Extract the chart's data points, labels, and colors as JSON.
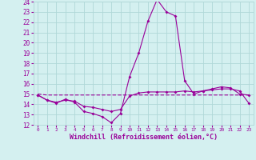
{
  "x": [
    0,
    1,
    2,
    3,
    4,
    5,
    6,
    7,
    8,
    9,
    10,
    11,
    12,
    13,
    14,
    15,
    16,
    17,
    18,
    19,
    20,
    21,
    22,
    23
  ],
  "line1": [
    14.9,
    14.4,
    14.1,
    14.5,
    14.2,
    13.3,
    13.1,
    12.8,
    12.2,
    13.1,
    16.7,
    19.0,
    22.1,
    24.2,
    23.0,
    22.6,
    16.3,
    15.0,
    15.3,
    15.5,
    15.7,
    15.6,
    15.0,
    14.9
  ],
  "line2": [
    15.0,
    14.9,
    14.9,
    14.9,
    14.9,
    14.9,
    14.9,
    14.9,
    14.9,
    14.9,
    14.9,
    14.9,
    14.9,
    14.9,
    14.9,
    14.9,
    14.9,
    14.9,
    14.9,
    14.9,
    14.9,
    14.9,
    14.9,
    14.9
  ],
  "line3": [
    14.9,
    14.4,
    14.2,
    14.4,
    14.3,
    13.8,
    13.7,
    13.5,
    13.3,
    13.5,
    14.8,
    15.1,
    15.2,
    15.2,
    15.2,
    15.2,
    15.3,
    15.2,
    15.3,
    15.4,
    15.5,
    15.5,
    15.3,
    14.1
  ],
  "line_color": "#990099",
  "bg_color": "#d4f0f0",
  "grid_color": "#b0d8d8",
  "xlabel": "Windchill (Refroidissement éolien,°C)",
  "ylim": [
    12,
    24
  ],
  "xlim": [
    -0.5,
    23.5
  ],
  "yticks": [
    12,
    13,
    14,
    15,
    16,
    17,
    18,
    19,
    20,
    21,
    22,
    23,
    24
  ],
  "xticks": [
    0,
    1,
    2,
    3,
    4,
    5,
    6,
    7,
    8,
    9,
    10,
    11,
    12,
    13,
    14,
    15,
    16,
    17,
    18,
    19,
    20,
    21,
    22,
    23
  ]
}
